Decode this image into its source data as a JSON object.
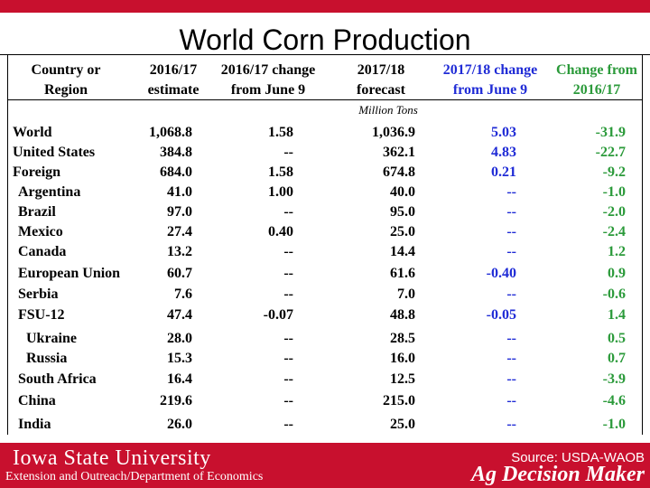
{
  "title": "World Corn Production",
  "headers": {
    "country": [
      "Country or",
      "Region"
    ],
    "est": [
      "2016/17",
      "estimate"
    ],
    "chg16": [
      "2016/17 change",
      "from June 9"
    ],
    "fc": [
      "2017/18",
      "forecast"
    ],
    "chg17": [
      "2017/18 change",
      "from June 9"
    ],
    "chgfrom": [
      "Change from",
      "2016/17"
    ]
  },
  "units": "Million Tons",
  "rows": [
    {
      "country": "World",
      "est": "1,068.8",
      "chg16": "1.58",
      "fc": "1,036.9",
      "chg17": "5.03",
      "chgfrom": "-31.9"
    },
    {
      "country": "United States",
      "est": "384.8",
      "chg16": "--",
      "fc": "362.1",
      "chg17": "4.83",
      "chgfrom": "-22.7"
    },
    {
      "country": "Foreign",
      "est": "684.0",
      "chg16": "1.58",
      "fc": "674.8",
      "chg17": "0.21",
      "chgfrom": "-9.2"
    },
    {
      "country": "Argentina",
      "est": "41.0",
      "chg16": "1.00",
      "fc": "40.0",
      "chg17": "--",
      "chgfrom": "-1.0"
    },
    {
      "country": "Brazil",
      "est": "97.0",
      "chg16": "--",
      "fc": "95.0",
      "chg17": "--",
      "chgfrom": "-2.0"
    },
    {
      "country": "Mexico",
      "est": "27.4",
      "chg16": "0.40",
      "fc": "25.0",
      "chg17": "--",
      "chgfrom": "-2.4"
    },
    {
      "country": "Canada",
      "est": "13.2",
      "chg16": "--",
      "fc": "14.4",
      "chg17": "--",
      "chgfrom": "1.2"
    },
    {
      "country": "European Union",
      "est": "60.7",
      "chg16": "--",
      "fc": "61.6",
      "chg17": "-0.40",
      "chgfrom": "0.9"
    },
    {
      "country": "Serbia",
      "est": "7.6",
      "chg16": "--",
      "fc": "7.0",
      "chg17": "--",
      "chgfrom": "-0.6"
    },
    {
      "country": "FSU-12",
      "est": "47.4",
      "chg16": "-0.07",
      "fc": "48.8",
      "chg17": "-0.05",
      "chgfrom": "1.4"
    },
    {
      "country": "Ukraine",
      "est": "28.0",
      "chg16": "--",
      "fc": "28.5",
      "chg17": "--",
      "chgfrom": "0.5"
    },
    {
      "country": "Russia",
      "est": "15.3",
      "chg16": "--",
      "fc": "16.0",
      "chg17": "--",
      "chgfrom": "0.7"
    },
    {
      "country": "South Africa",
      "est": "16.4",
      "chg16": "--",
      "fc": "12.5",
      "chg17": "--",
      "chgfrom": "-3.9"
    },
    {
      "country": "China",
      "est": "219.6",
      "chg16": "--",
      "fc": "215.0",
      "chg17": "--",
      "chgfrom": "-4.6"
    },
    {
      "country": "India",
      "est": "26.0",
      "chg16": "--",
      "fc": "25.0",
      "chg17": "--",
      "chgfrom": "-1.0"
    }
  ],
  "footer": {
    "logo": "Iowa State University",
    "extension": "Extension and Outreach/Department of Economics",
    "source": "Source: USDA-WAOB",
    "brand": "Ag Decision Maker"
  },
  "colors": {
    "accent": "#c8102e",
    "blue": "#1f2bd6",
    "green": "#2b9a3a"
  }
}
